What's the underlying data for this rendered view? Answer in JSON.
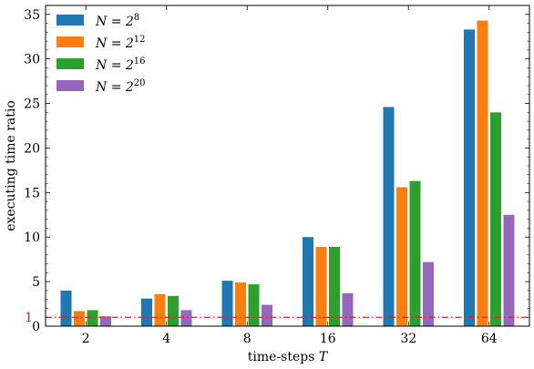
{
  "chart_data": {
    "type": "bar",
    "xlabel": "time-steps T",
    "ylabel": "executing time ratio",
    "categories": [
      "2",
      "4",
      "8",
      "16",
      "32",
      "64"
    ],
    "ylim": [
      0,
      36
    ],
    "yticks": [
      0,
      5,
      10,
      15,
      20,
      25,
      30,
      35
    ],
    "grid": false,
    "legend_position": "top-left",
    "series": [
      {
        "name": "N = 2^8",
        "legend_base": "N = 2",
        "legend_exp": "8",
        "color": "#1f77b4",
        "values": [
          4.0,
          3.1,
          5.1,
          10.0,
          24.6,
          33.3
        ]
      },
      {
        "name": "N = 2^12",
        "legend_base": "N = 2",
        "legend_exp": "12",
        "color": "#ff7f0e",
        "values": [
          1.7,
          3.6,
          4.9,
          8.9,
          15.6,
          34.3
        ]
      },
      {
        "name": "N = 2^16",
        "legend_base": "N = 2",
        "legend_exp": "16",
        "color": "#2ca02c",
        "values": [
          1.8,
          3.4,
          4.7,
          8.9,
          16.3,
          24.0
        ]
      },
      {
        "name": "N = 2^20",
        "legend_base": "N = 2",
        "legend_exp": "20",
        "color": "#9467bd",
        "values": [
          1.1,
          1.8,
          2.4,
          3.7,
          7.2,
          12.5
        ]
      }
    ],
    "reference_line": {
      "value": 1,
      "label": "1",
      "color": "#d62728"
    }
  }
}
